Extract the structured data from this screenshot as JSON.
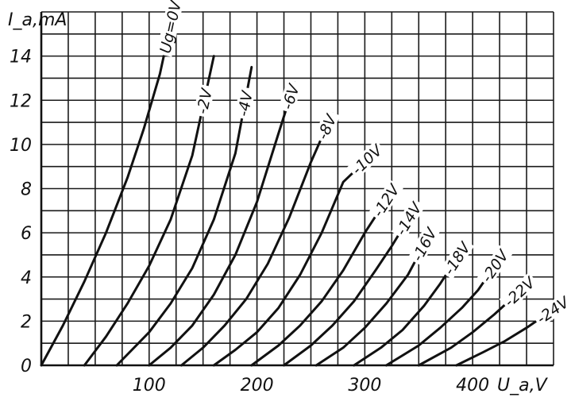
{
  "chart_data": {
    "type": "line",
    "ylabel": "I_a,mA",
    "xlabel": "U_a,V",
    "xlim": [
      0,
      475
    ],
    "ylim": [
      0,
      16
    ],
    "x_ticks": [
      100,
      200,
      300,
      400
    ],
    "x_tick_labels": [
      "100",
      "200",
      "300",
      "400"
    ],
    "y_ticks": [
      0,
      2,
      4,
      6,
      8,
      10,
      12,
      14
    ],
    "y_tick_labels": [
      "0",
      "2",
      "4",
      "6",
      "8",
      "10",
      "12",
      "14"
    ],
    "grid": true,
    "series": [
      {
        "name": "Ug=0V",
        "points": [
          [
            0,
            0
          ],
          [
            20,
            1.8
          ],
          [
            40,
            3.8
          ],
          [
            60,
            6.0
          ],
          [
            80,
            8.5
          ],
          [
            95,
            10.7
          ],
          [
            110,
            13.2
          ],
          [
            118,
            15.0
          ]
        ]
      },
      {
        "name": "-2V",
        "points": [
          [
            40,
            0
          ],
          [
            60,
            1.3
          ],
          [
            80,
            2.8
          ],
          [
            100,
            4.5
          ],
          [
            120,
            6.6
          ],
          [
            140,
            9.5
          ],
          [
            160,
            14.0
          ]
        ]
      },
      {
        "name": "-4V",
        "points": [
          [
            70,
            0
          ],
          [
            100,
            1.5
          ],
          [
            120,
            2.8
          ],
          [
            140,
            4.4
          ],
          [
            160,
            6.6
          ],
          [
            180,
            9.6
          ],
          [
            195,
            13.5
          ]
        ]
      },
      {
        "name": "-6V",
        "points": [
          [
            100,
            0
          ],
          [
            120,
            0.8
          ],
          [
            140,
            1.8
          ],
          [
            160,
            3.2
          ],
          [
            180,
            5.0
          ],
          [
            200,
            7.4
          ],
          [
            220,
            10.5
          ],
          [
            235,
            12.8
          ]
        ]
      },
      {
        "name": "-8V",
        "points": [
          [
            130,
            0
          ],
          [
            150,
            0.8
          ],
          [
            170,
            1.8
          ],
          [
            190,
            3.0
          ],
          [
            210,
            4.6
          ],
          [
            230,
            6.7
          ],
          [
            250,
            9.2
          ],
          [
            270,
            11.4
          ]
        ]
      },
      {
        "name": "-10V",
        "points": [
          [
            160,
            0
          ],
          [
            180,
            0.7
          ],
          [
            200,
            1.5
          ],
          [
            220,
            2.6
          ],
          [
            240,
            4.1
          ],
          [
            260,
            6.0
          ],
          [
            280,
            8.3
          ],
          [
            295,
            9.0
          ]
        ]
      },
      {
        "name": "-12V",
        "points": [
          [
            195,
            0
          ],
          [
            220,
            0.9
          ],
          [
            240,
            1.8
          ],
          [
            260,
            2.9
          ],
          [
            280,
            4.3
          ],
          [
            300,
            6.0
          ],
          [
            320,
            7.5
          ]
        ]
      },
      {
        "name": "-14V",
        "points": [
          [
            225,
            0
          ],
          [
            250,
            0.9
          ],
          [
            270,
            1.8
          ],
          [
            290,
            2.9
          ],
          [
            310,
            4.3
          ],
          [
            325,
            5.4
          ],
          [
            335,
            6.2
          ]
        ]
      },
      {
        "name": "-16V",
        "points": [
          [
            255,
            0
          ],
          [
            280,
            0.8
          ],
          [
            300,
            1.7
          ],
          [
            320,
            2.8
          ],
          [
            340,
            4.1
          ],
          [
            352,
            5.2
          ]
        ]
      },
      {
        "name": "-18V",
        "points": [
          [
            290,
            0
          ],
          [
            315,
            0.8
          ],
          [
            335,
            1.6
          ],
          [
            355,
            2.7
          ],
          [
            370,
            3.7
          ],
          [
            378,
            4.3
          ]
        ]
      },
      {
        "name": "-20V",
        "points": [
          [
            320,
            0
          ],
          [
            350,
            0.9
          ],
          [
            370,
            1.7
          ],
          [
            390,
            2.6
          ],
          [
            405,
            3.4
          ],
          [
            412,
            3.9
          ]
        ]
      },
      {
        "name": "-22V",
        "points": [
          [
            350,
            0
          ],
          [
            380,
            0.8
          ],
          [
            400,
            1.5
          ],
          [
            420,
            2.3
          ],
          [
            438,
            3.1
          ]
        ]
      },
      {
        "name": "-24V",
        "points": [
          [
            385,
            0
          ],
          [
            410,
            0.6
          ],
          [
            430,
            1.1
          ],
          [
            450,
            1.7
          ],
          [
            465,
            2.2
          ]
        ]
      }
    ],
    "curve_labels": [
      {
        "text": "Ug=0V",
        "series": "Ug=0V"
      },
      {
        "text": "-2V",
        "series": "-2V"
      },
      {
        "text": "-4V",
        "series": "-4V"
      },
      {
        "text": "-6V",
        "series": "-6V"
      },
      {
        "text": "-8V",
        "series": "-8V"
      },
      {
        "text": "-10V",
        "series": "-10V"
      },
      {
        "text": "-12V",
        "series": "-12V"
      },
      {
        "text": "-14V",
        "series": "-14V"
      },
      {
        "text": "-16V",
        "series": "-16V"
      },
      {
        "text": "-18V",
        "series": "-18V"
      },
      {
        "text": "-20V",
        "series": "-20V"
      },
      {
        "text": "-22V",
        "series": "-22V"
      },
      {
        "text": "-24V",
        "series": "-24V"
      }
    ]
  }
}
